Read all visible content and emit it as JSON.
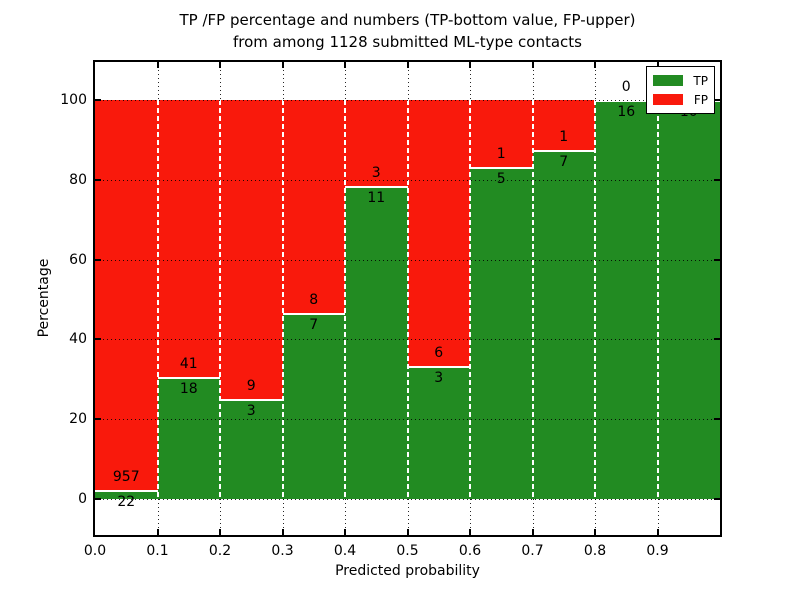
{
  "chart_data": {
    "type": "bar",
    "stacked": true,
    "title": "TP /FP percentage and numbers (TP-bottom value, FP-upper)",
    "subtitle": "from among 1128 submitted ML-type contacts",
    "xlabel": "Predicted probability",
    "ylabel": "Percentage",
    "total_submitted": 1128,
    "bin_edges": [
      0.0,
      0.1,
      0.2,
      0.3,
      0.4,
      0.5,
      0.6,
      0.7,
      0.8,
      0.9,
      1.0
    ],
    "x_tick_labels": [
      "0.0",
      "0.1",
      "0.2",
      "0.3",
      "0.4",
      "0.5",
      "0.6",
      "0.7",
      "0.8",
      "0.9"
    ],
    "y_ticks": [
      0,
      20,
      40,
      60,
      80,
      100
    ],
    "y_tick_labels": [
      "0",
      "20",
      "40",
      "60",
      "80",
      "100"
    ],
    "ylim": [
      -9,
      110
    ],
    "grid": true,
    "legend_position": "upper right",
    "bar_unit": "percent of bin (TP+FP stack to 100%)",
    "series": [
      {
        "name": "TP",
        "color": "#228b22",
        "counts": [
          22,
          18,
          3,
          7,
          11,
          3,
          5,
          7,
          16,
          10
        ]
      },
      {
        "name": "FP",
        "color": "#f9190c",
        "counts": [
          957,
          41,
          9,
          8,
          3,
          6,
          1,
          1,
          0,
          0
        ]
      }
    ]
  }
}
